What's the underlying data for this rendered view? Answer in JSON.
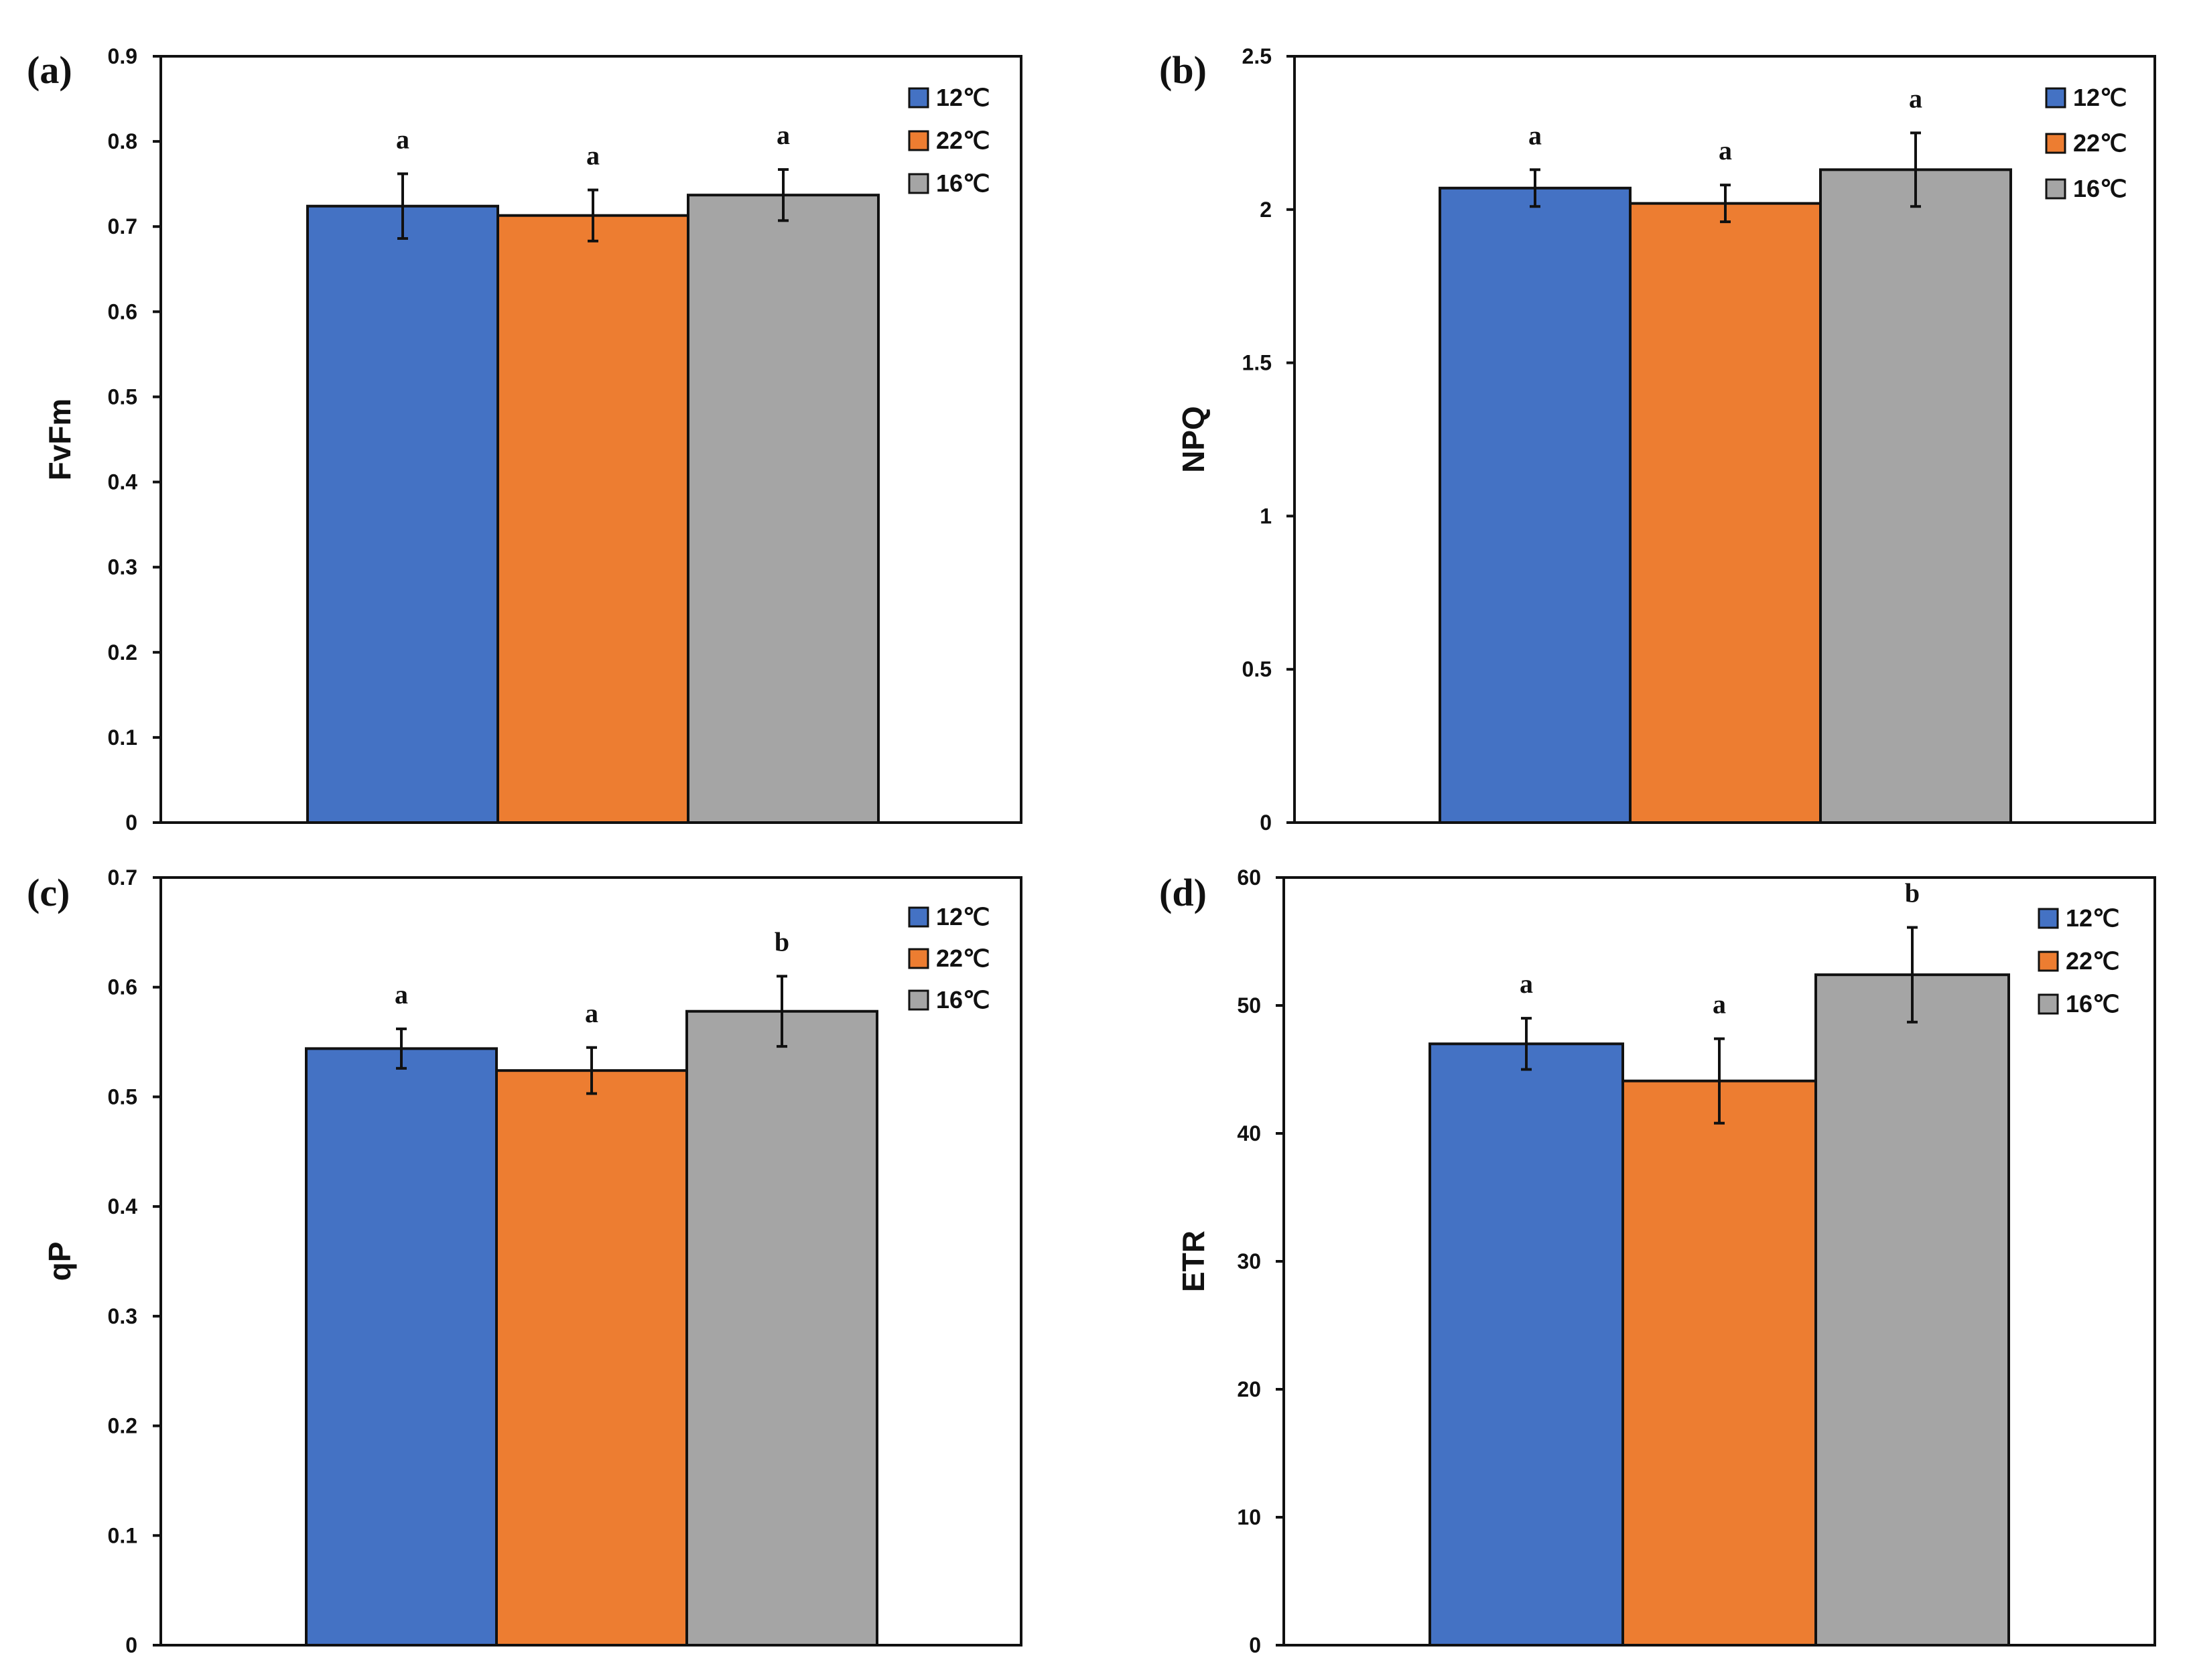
{
  "chart_data": [
    {
      "type": "bar",
      "panel_label": "(a)",
      "ylabel": "FvFm",
      "xlabel": "",
      "ylim": [
        0,
        0.9
      ],
      "yticks": [
        0,
        0.1,
        0.2,
        0.3,
        0.4,
        0.5,
        0.6,
        0.7,
        0.8,
        0.9
      ],
      "ytick_labels": [
        "0",
        "0.1",
        "0.2",
        "0.3",
        "0.4",
        "0.5",
        "0.6",
        "0.7",
        "0.8",
        "0.9"
      ],
      "legend_position": "top-right",
      "series": [
        {
          "name": "12℃",
          "color": "#4472C4",
          "value": 0.724,
          "error": 0.038,
          "sig": "a"
        },
        {
          "name": "22℃",
          "color": "#ED7D31",
          "value": 0.713,
          "error": 0.03,
          "sig": "a"
        },
        {
          "name": "16℃",
          "color": "#A5A5A5",
          "value": 0.737,
          "error": 0.03,
          "sig": "a"
        }
      ]
    },
    {
      "type": "bar",
      "panel_label": "(b)",
      "ylabel": "NPQ",
      "xlabel": "",
      "ylim": [
        0,
        2.5
      ],
      "yticks": [
        0,
        0.5,
        1,
        1.5,
        2,
        2.5
      ],
      "ytick_labels": [
        "0",
        "0.5",
        "1",
        "1.5",
        "2",
        "2.5"
      ],
      "legend_position": "top-right",
      "series": [
        {
          "name": "12℃",
          "color": "#4472C4",
          "value": 2.07,
          "error": 0.06,
          "sig": "a"
        },
        {
          "name": "22℃",
          "color": "#ED7D31",
          "value": 2.02,
          "error": 0.06,
          "sig": "a"
        },
        {
          "name": "16℃",
          "color": "#A5A5A5",
          "value": 2.13,
          "error": 0.12,
          "sig": "a"
        }
      ]
    },
    {
      "type": "bar",
      "panel_label": "(c)",
      "ylabel": "qP",
      "xlabel": "",
      "ylim": [
        0,
        0.7
      ],
      "yticks": [
        0,
        0.1,
        0.2,
        0.3,
        0.4,
        0.5,
        0.6,
        0.7
      ],
      "ytick_labels": [
        "0",
        "0.1",
        "0.2",
        "0.3",
        "0.4",
        "0.5",
        "0.6",
        "0.7"
      ],
      "legend_position": "top-right",
      "series": [
        {
          "name": "12℃",
          "color": "#4472C4",
          "value": 0.544,
          "error": 0.018,
          "sig": "a"
        },
        {
          "name": "22℃",
          "color": "#ED7D31",
          "value": 0.524,
          "error": 0.021,
          "sig": "a"
        },
        {
          "name": "16℃",
          "color": "#A5A5A5",
          "value": 0.578,
          "error": 0.032,
          "sig": "b"
        }
      ]
    },
    {
      "type": "bar",
      "panel_label": "(d)",
      "ylabel": "ETR",
      "xlabel": "",
      "ylim": [
        0,
        60
      ],
      "yticks": [
        0,
        10,
        20,
        30,
        40,
        50,
        60
      ],
      "ytick_labels": [
        "0",
        "10",
        "20",
        "30",
        "40",
        "50",
        "60"
      ],
      "legend_position": "top-right",
      "series": [
        {
          "name": "12℃",
          "color": "#4472C4",
          "value": 47.0,
          "error": 2.0,
          "sig": "a"
        },
        {
          "name": "22℃",
          "color": "#ED7D31",
          "value": 44.1,
          "error": 3.3,
          "sig": "a"
        },
        {
          "name": "16℃",
          "color": "#A5A5A5",
          "value": 52.4,
          "error": 3.7,
          "sig": "b"
        }
      ]
    }
  ]
}
